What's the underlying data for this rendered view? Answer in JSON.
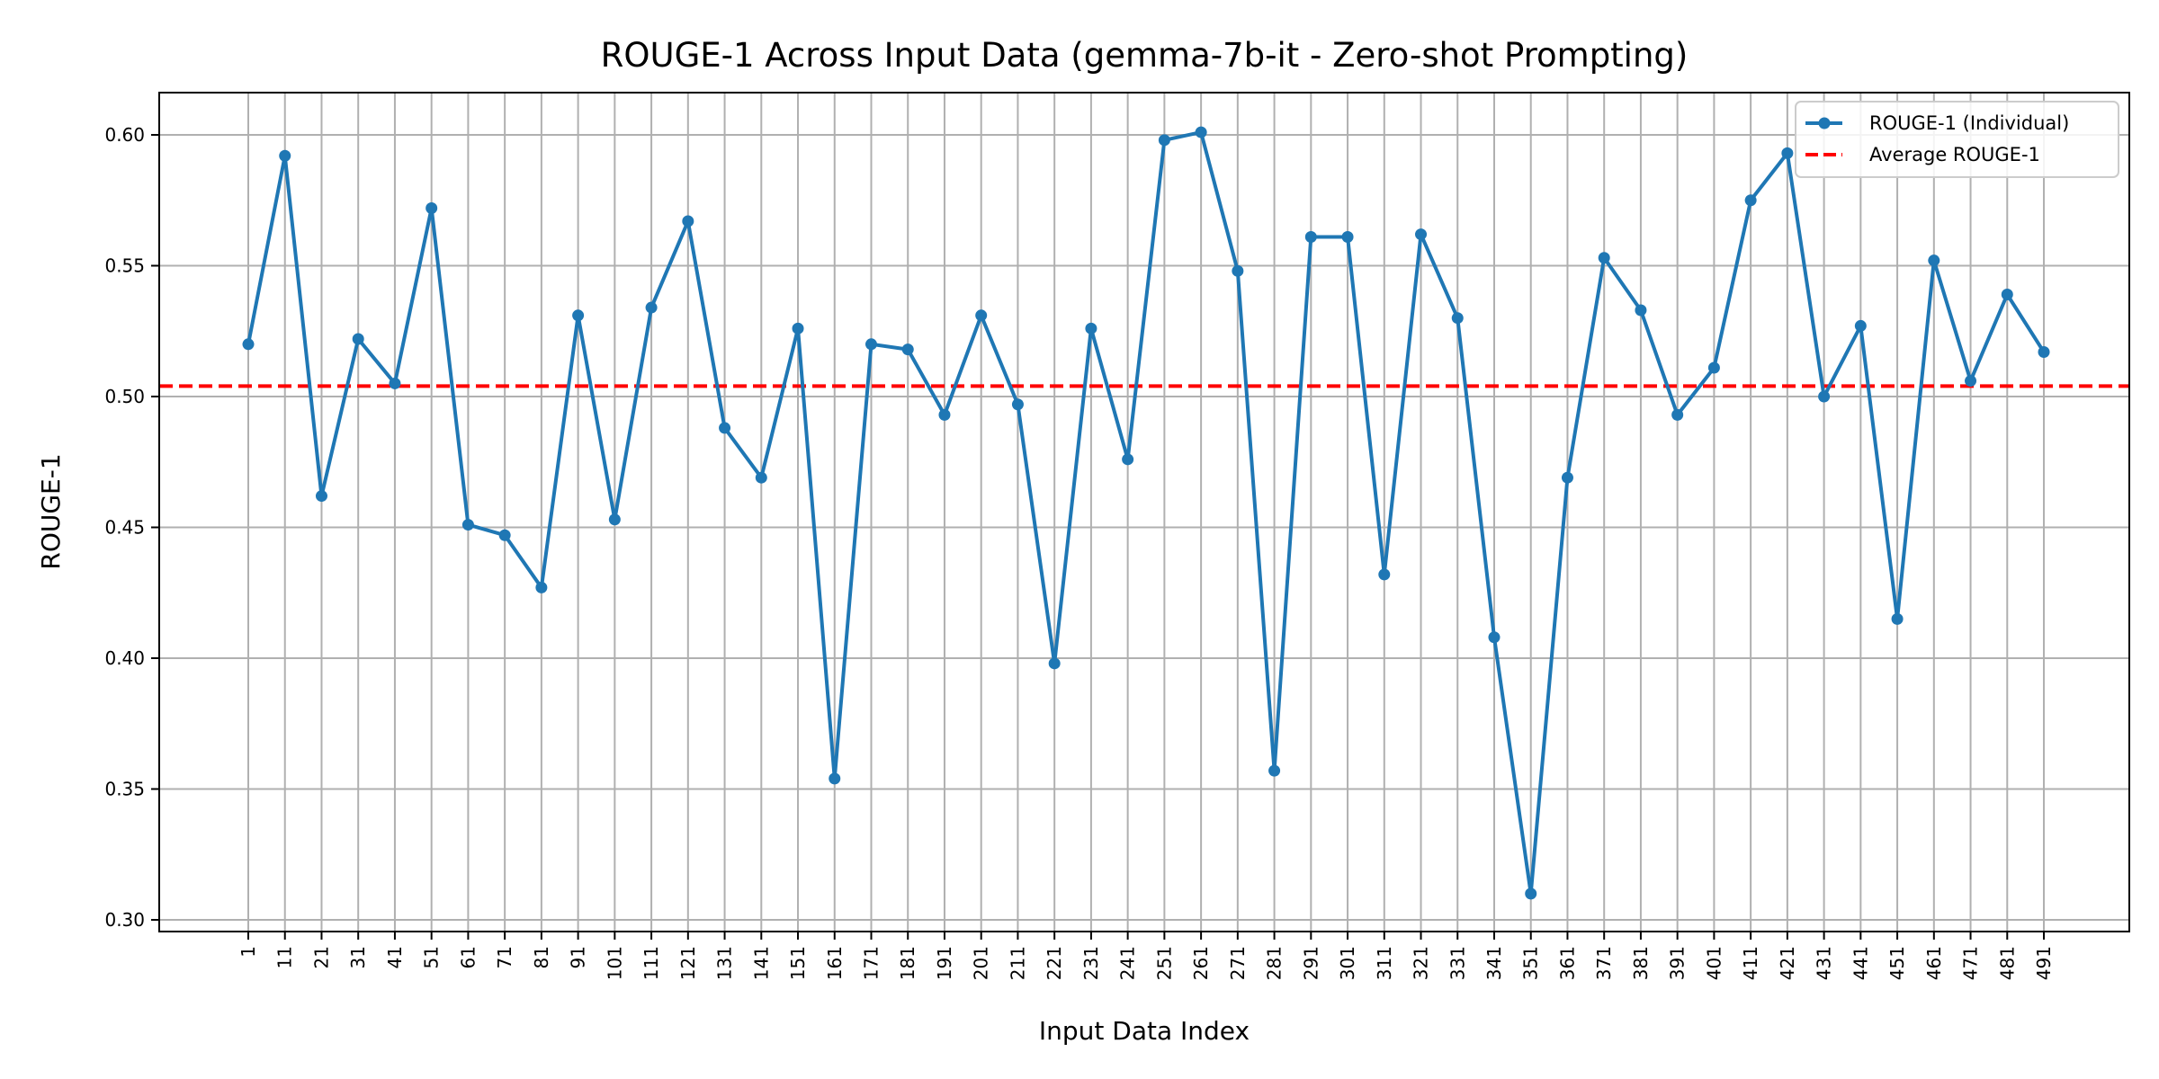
{
  "chart_data": {
    "type": "line",
    "title": "ROUGE-1 Across Input Data (gemma-7b-it - Zero-shot Prompting)",
    "xlabel": "Input Data Index",
    "ylabel": "ROUGE-1",
    "ylim": [
      0.295,
      0.615
    ],
    "y_ticks": [
      0.3,
      0.35,
      0.4,
      0.45,
      0.5,
      0.55,
      0.6
    ],
    "y_tick_labels": [
      "0.30",
      "0.35",
      "0.40",
      "0.45",
      "0.50",
      "0.55",
      "0.60"
    ],
    "grid": true,
    "legend_position": "top-right",
    "x": [
      "1",
      "11",
      "21",
      "31",
      "41",
      "51",
      "61",
      "71",
      "81",
      "91",
      "101",
      "111",
      "121",
      "131",
      "141",
      "151",
      "161",
      "171",
      "181",
      "191",
      "201",
      "211",
      "221",
      "231",
      "241",
      "251",
      "261",
      "271",
      "281",
      "291",
      "301",
      "311",
      "321",
      "331",
      "341",
      "351",
      "361",
      "371",
      "381",
      "391",
      "401",
      "411",
      "421",
      "431",
      "441",
      "451",
      "461",
      "471",
      "481",
      "491"
    ],
    "series": [
      {
        "name": "ROUGE-1 (Individual)",
        "color": "#1f77b4",
        "style": "solid-with-markers",
        "values": [
          0.52,
          0.592,
          0.462,
          0.522,
          0.505,
          0.572,
          0.451,
          0.447,
          0.427,
          0.531,
          0.453,
          0.534,
          0.567,
          0.488,
          0.469,
          0.526,
          0.354,
          0.52,
          0.518,
          0.493,
          0.531,
          0.497,
          0.398,
          0.526,
          0.476,
          0.598,
          0.601,
          0.548,
          0.357,
          0.561,
          0.561,
          0.432,
          0.562,
          0.53,
          0.408,
          0.31,
          0.469,
          0.553,
          0.533,
          0.493,
          0.511,
          0.575,
          0.593,
          0.5,
          0.527,
          0.415,
          0.552,
          0.506,
          0.539,
          0.517
        ]
      },
      {
        "name": "Average ROUGE-1",
        "color": "#ff0000",
        "style": "dashed",
        "value": 0.504
      }
    ]
  }
}
